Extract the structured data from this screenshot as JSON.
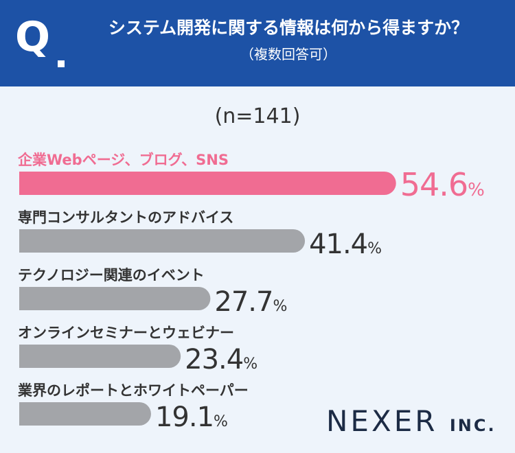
{
  "header": {
    "q_label": "Q",
    "question": "システム開発に関する情報は何から得ますか？",
    "note": "（複数回答可）"
  },
  "sample_size": "(n=141)",
  "chart_data": {
    "type": "bar",
    "orientation": "horizontal",
    "categories": [
      "企業Webページ、ブログ、SNS",
      "専門コンサルタントのアドバイス",
      "テクノロジー関連のイベント",
      "オンラインセミナーとウェビナー",
      "業界のレポートとホワイトペーパー"
    ],
    "values": [
      54.6,
      41.4,
      27.7,
      23.4,
      19.1
    ],
    "value_labels": [
      "54.6",
      "41.4",
      "27.7",
      "23.4",
      "19.1"
    ],
    "unit": "%",
    "highlight_color": "#f06c92",
    "bar_color": "#a3a5a9",
    "value_text_color": "#333333"
  },
  "brand": {
    "name": "NEXER",
    "suffix": "INC."
  }
}
